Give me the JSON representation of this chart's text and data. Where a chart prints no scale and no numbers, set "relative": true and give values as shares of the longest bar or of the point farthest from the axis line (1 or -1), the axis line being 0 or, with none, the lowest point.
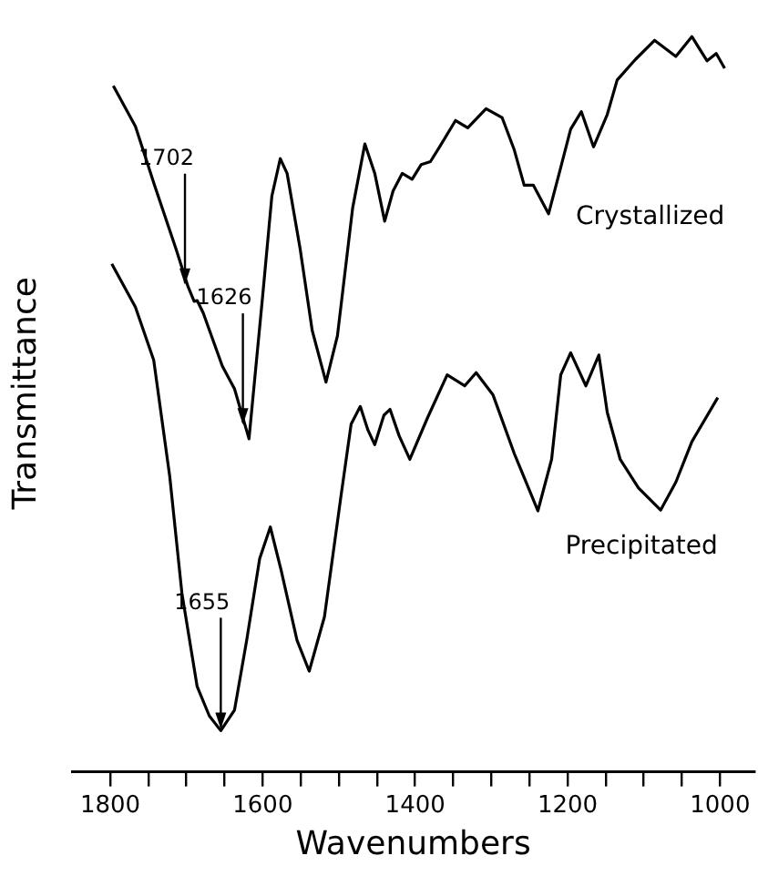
{
  "chart_data": {
    "type": "line",
    "relative": true,
    "xlabel": "Wavenumbers",
    "ylabel": "Transmittance",
    "xlim": [
      1850,
      955
    ],
    "xticks": [
      1800,
      {
        "value": 1750,
        "label": null
      },
      {
        "value": 1700,
        "label": null
      },
      {
        "value": 1650,
        "label": null
      },
      1600,
      {
        "value": 1550,
        "label": null
      },
      {
        "value": 1500,
        "label": null
      },
      {
        "value": 1450,
        "label": null
      },
      1400,
      {
        "value": 1350,
        "label": null
      },
      {
        "value": 1300,
        "label": null
      },
      {
        "value": 1250,
        "label": null
      },
      1200,
      {
        "value": 1150,
        "label": null
      },
      {
        "value": 1100,
        "label": null
      },
      {
        "value": 1050,
        "label": null
      },
      1000
    ],
    "annotations": [
      {
        "text": "1702",
        "x": 1702,
        "y": 0.66
      },
      {
        "text": "1626",
        "x": 1626,
        "y": 0.47
      },
      {
        "text": "1655",
        "x": 1655,
        "y": 0.056
      }
    ],
    "series": [
      {
        "name": "Crystallized",
        "color": "#000000",
        "x": [
          1796,
          1767,
          1742,
          1714,
          1698,
          1690,
          1686,
          1678,
          1653,
          1637,
          1618,
          1600,
          1588,
          1577,
          1568,
          1551,
          1535,
          1517,
          1502,
          1482,
          1466,
          1453,
          1440,
          1429,
          1417,
          1404,
          1392,
          1380,
          1368,
          1347,
          1331,
          1307,
          1286,
          1270,
          1257,
          1245,
          1225,
          1209,
          1196,
          1182,
          1166,
          1148,
          1135,
          1111,
          1086,
          1058,
          1037,
          1017,
          1005,
          994
        ],
        "values": [
          0.933,
          0.878,
          0.798,
          0.712,
          0.66,
          0.64,
          0.641,
          0.624,
          0.552,
          0.521,
          0.453,
          0.648,
          0.783,
          0.834,
          0.814,
          0.712,
          0.6,
          0.53,
          0.593,
          0.767,
          0.854,
          0.814,
          0.749,
          0.79,
          0.814,
          0.806,
          0.826,
          0.83,
          0.85,
          0.886,
          0.876,
          0.902,
          0.89,
          0.846,
          0.798,
          0.798,
          0.759,
          0.822,
          0.874,
          0.898,
          0.85,
          0.894,
          0.941,
          0.969,
          0.995,
          0.973,
          1,
          0.967,
          0.977,
          0.957
        ]
      },
      {
        "name": "Precipitated",
        "color": "#000000",
        "x": [
          1798,
          1767,
          1743,
          1722,
          1706,
          1686,
          1670,
          1655,
          1637,
          1621,
          1604,
          1590,
          1576,
          1555,
          1539,
          1519,
          1498,
          1484,
          1472,
          1462,
          1453,
          1441,
          1433,
          1421,
          1407,
          1384,
          1358,
          1335,
          1320,
          1298,
          1270,
          1239,
          1221,
          1209,
          1196,
          1176,
          1159,
          1148,
          1131,
          1107,
          1078,
          1058,
          1037,
          1003
        ],
        "values": [
          0.691,
          0.632,
          0.56,
          0.402,
          0.243,
          0.116,
          0.076,
          0.056,
          0.084,
          0.179,
          0.29,
          0.333,
          0.275,
          0.179,
          0.137,
          0.211,
          0.37,
          0.473,
          0.497,
          0.465,
          0.445,
          0.485,
          0.493,
          0.457,
          0.425,
          0.481,
          0.54,
          0.525,
          0.543,
          0.513,
          0.433,
          0.355,
          0.425,
          0.54,
          0.57,
          0.525,
          0.567,
          0.489,
          0.425,
          0.386,
          0.356,
          0.394,
          0.449,
          0.509
        ]
      }
    ]
  }
}
